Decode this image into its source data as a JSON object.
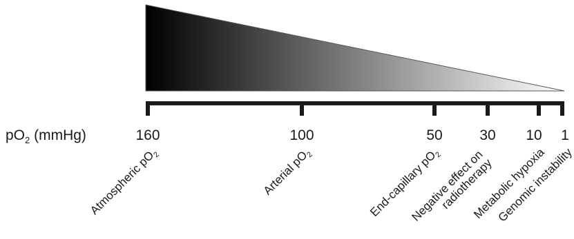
{
  "axis": {
    "label_main": "pO",
    "label_sub": "2",
    "label_unit": " (mmHg)"
  },
  "ticks": [
    "160",
    "100",
    "50",
    "30",
    "10",
    "1"
  ],
  "markers": [
    {
      "text": "Atmospheric  pO",
      "sub": "2"
    },
    {
      "text": "Arterial  pO",
      "sub": "2"
    },
    {
      "text": "End-capillary pO",
      "sub": "2"
    },
    {
      "lines": [
        "Negative effect on",
        "radiotherapy"
      ]
    },
    {
      "text": "Metabolic hypoxia"
    },
    {
      "text": "Genomic instability"
    }
  ],
  "colors": {
    "gradient_start": "#000000",
    "gradient_end": "#ffffff",
    "bar": "#1a1a1a"
  }
}
